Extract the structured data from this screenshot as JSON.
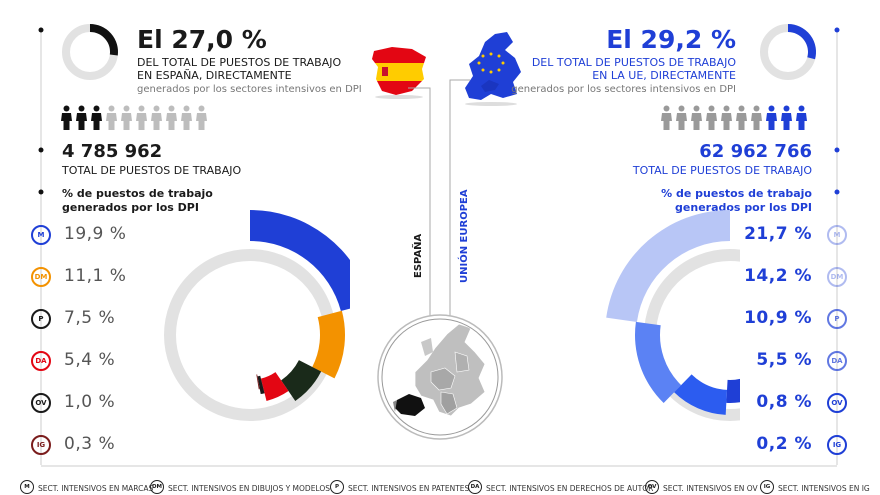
{
  "spain": {
    "headline": "El 27,0 %",
    "line1": "DEL TOTAL DE PUESTOS DE TRABAJO",
    "line2": "EN ESPAÑA, DIRECTAMENTE",
    "line3": "generados por los sectores intensivos en DPI",
    "total": "4 785 962",
    "total_label": "TOTAL DE PUESTOS DE TRABAJO",
    "pct_title_1": "% de puestos de trabajo",
    "pct_title_2": "generados por los DPI",
    "region_label": "ESPAÑA",
    "share": 0.27
  },
  "eu": {
    "headline": "El 29,2 %",
    "line1": "DEL TOTAL DE PUESTOS DE TRABAJO",
    "line2": "EN LA UE, DIRECTAMENTE",
    "line3": "generados por los sectores intensivos en DPI",
    "total": "62 962 766",
    "total_label": "TOTAL DE PUESTOS DE TRABAJO",
    "pct_title_1": "% de puestos de trabajo",
    "pct_title_2": "generados por los DPI",
    "region_label": "UNIÓN EUROPEA",
    "share": 0.292
  },
  "chart_data": [
    {
      "type": "pie",
      "categories": [
        "M",
        "DM",
        "P",
        "DA",
        "OV",
        "IG"
      ],
      "values": [
        19.9,
        11.1,
        7.5,
        5.4,
        1.0,
        0.3
      ],
      "labels": [
        "19,9 %",
        "11,1 %",
        "7,5 %",
        "5,4 %",
        "1,0 %",
        "0,3 %"
      ],
      "colors": [
        "#1f3fd6",
        "#f39200",
        "#1a1a1a",
        "#e30613",
        "#1a1a1a",
        "#7a1c1c"
      ],
      "slice_colors": [
        "#1f3fd6",
        "#f39200",
        "#1a2a1a",
        "#e30613",
        "#1a1a1a",
        "#7a1c1c"
      ]
    },
    {
      "type": "pie",
      "categories": [
        "M",
        "DM",
        "P",
        "DA",
        "OV",
        "IG"
      ],
      "values": [
        21.7,
        14.2,
        10.9,
        5.5,
        0.8,
        0.2
      ],
      "labels": [
        "21,7 %",
        "14,2 %",
        "10,9 %",
        "5,5 %",
        "0,8 %",
        "0,2 %"
      ],
      "badge_color": "#1f3fd6",
      "slice_colors": [
        "#b8c6f6",
        "#5b82f4",
        "#2c5cf0",
        "#1f3fd6",
        "#1230b8",
        "#0a1f99"
      ]
    }
  ],
  "legend": [
    {
      "code": "M",
      "text": "SECT. INTENSIVOS EN MARCAS"
    },
    {
      "code": "DM",
      "text": "SECT. INTENSIVOS EN DIBUJOS Y MODELOS"
    },
    {
      "code": "P",
      "text": "SECT. INTENSIVOS EN PATENTES"
    },
    {
      "code": "DA",
      "text": "SECT. INTENSIVOS EN DERECHOS DE AUTOR"
    },
    {
      "code": "OV",
      "text": "SECT. INTENSIVOS EN OV"
    },
    {
      "code": "IG",
      "text": "SECT. INTENSIVOS EN IG"
    }
  ],
  "icons": {
    "person": "person-icon",
    "spain_flag": "spain-flag-map-icon",
    "eu_flag": "eu-flag-map-icon",
    "europe_map": "europe-map-icon"
  }
}
